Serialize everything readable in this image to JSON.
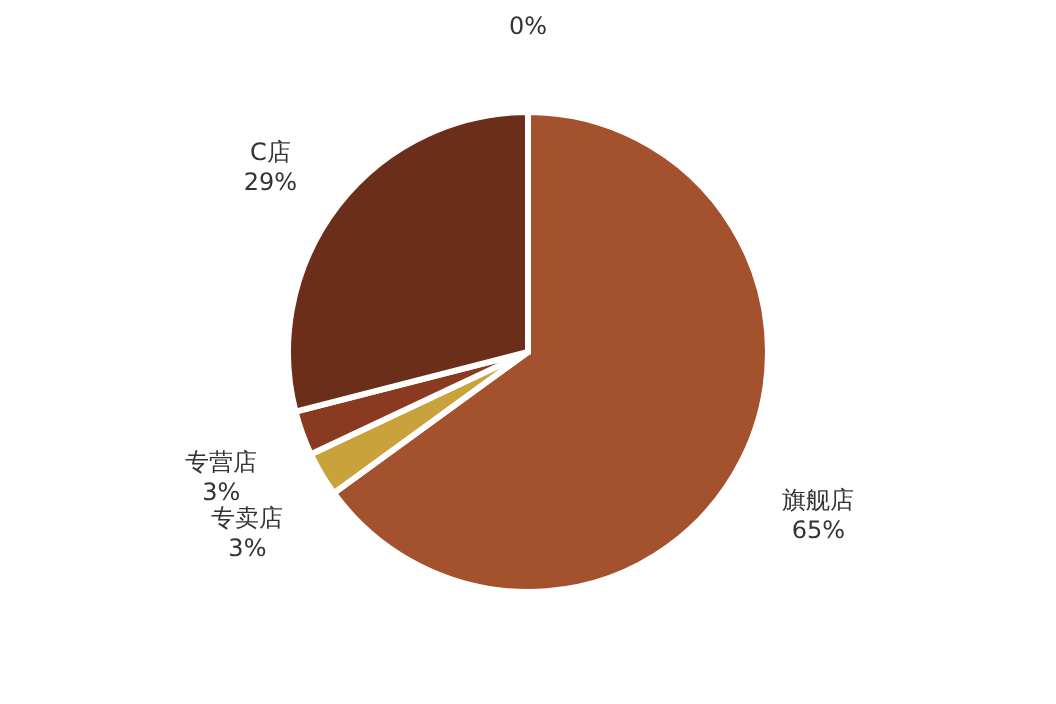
{
  "chart_data": {
    "type": "pie",
    "categories": [
      null,
      "旗舰店",
      "专卖店",
      "专营店",
      "C店"
    ],
    "values": [
      0,
      65,
      3,
      3,
      29
    ],
    "colors": [
      "#c9a23c",
      "#a4512d",
      "#c9a23c",
      "#8b3a22",
      "#6b2e1a"
    ],
    "value_labels": [
      "0%",
      "65%",
      "3%",
      "3%",
      "29%"
    ],
    "legend": false
  }
}
